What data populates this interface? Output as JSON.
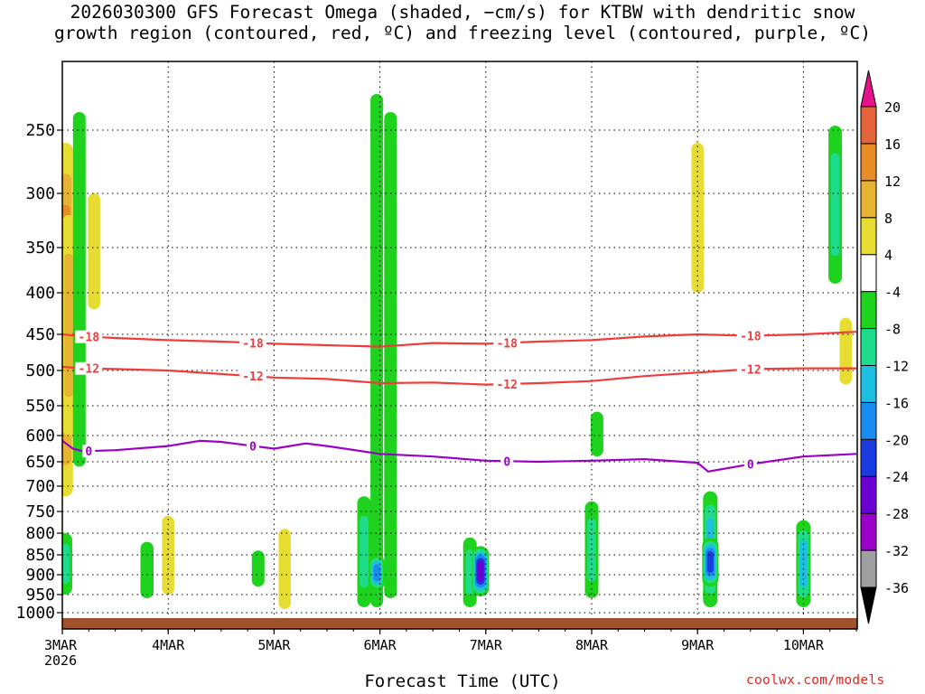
{
  "title": "2026030300 GFS Forecast Omega (shaded, −cm/s) for KTBW with dendritic snow\ngrowth region (contoured, red, ºC) and freezing level (contoured, purple, ºC)",
  "credit": "coolwx.com/models",
  "colors": {
    "omega_scale": [
      "#000000",
      "#a0a0a0",
      "#9a00c8",
      "#6a00d2",
      "#1a3be0",
      "#1a8cf0",
      "#1ebee0",
      "#1edc8c",
      "#1ed21e",
      "#ffffff",
      "#e6dc32",
      "#e6b432",
      "#e68c28",
      "#e6643c",
      "#f03c3c",
      "#e6128c"
    ],
    "dendritic": "#f03c3c",
    "freezing": "#9a00c8",
    "ground": "#a0522d"
  },
  "chart_data": {
    "type": "heatmap",
    "xlabel": "Forecast Time (UTC)",
    "ylabel": "",
    "x_ticks": [
      "3MAR\n2026",
      "4MAR",
      "5MAR",
      "6MAR",
      "7MAR",
      "8MAR",
      "9MAR",
      "10MAR"
    ],
    "x_tick_days": [
      0,
      1,
      2,
      3,
      4,
      5,
      6,
      7
    ],
    "xlim_days": [
      0,
      7.5
    ],
    "y_ticks": [
      250,
      300,
      350,
      400,
      450,
      500,
      550,
      600,
      650,
      700,
      750,
      800,
      850,
      900,
      950,
      1000
    ],
    "ylim_hpa": [
      200,
      1025
    ],
    "y_scale": "hybrid pressure",
    "grid": true,
    "colorbar_levels": [
      -36,
      -32,
      -28,
      -24,
      -20,
      -16,
      -12,
      -8,
      -4,
      4,
      8,
      12,
      16,
      20
    ],
    "contour_labels": {
      "dendritic_minus18": "-18",
      "dendritic_minus12": "-12",
      "freezing_0": "0"
    },
    "series": [
      {
        "name": "-18",
        "x": [
          0.0,
          0.2,
          0.5,
          1.0,
          1.5,
          2.0,
          2.5,
          3.0,
          3.5,
          4.0,
          4.5,
          5.0,
          5.5,
          6.0,
          6.5,
          7.0,
          7.5
        ],
        "y": [
          450,
          453,
          455,
          458,
          460,
          463,
          465,
          467,
          462,
          463,
          460,
          458,
          453,
          450,
          452,
          450,
          447
        ]
      },
      {
        "name": "-12",
        "x": [
          0.0,
          0.2,
          0.5,
          1.0,
          1.5,
          2.0,
          2.5,
          3.0,
          3.5,
          4.0,
          4.5,
          5.0,
          5.5,
          6.0,
          6.5,
          7.0,
          7.5
        ],
        "y": [
          495,
          497,
          498,
          500,
          505,
          510,
          512,
          518,
          517,
          520,
          518,
          515,
          508,
          503,
          498,
          497,
          497
        ]
      },
      {
        "name": "0",
        "x": [
          0.0,
          0.1,
          0.2,
          0.5,
          1.0,
          1.3,
          1.5,
          2.0,
          2.3,
          2.5,
          3.0,
          3.5,
          4.0,
          4.5,
          5.0,
          5.5,
          6.0,
          6.1,
          6.5,
          7.0,
          7.5
        ],
        "y": [
          610,
          625,
          630,
          628,
          620,
          610,
          612,
          625,
          615,
          620,
          635,
          640,
          648,
          650,
          648,
          645,
          652,
          670,
          655,
          640,
          635
        ]
      }
    ],
    "omega_cells": [
      {
        "t": 0.03,
        "p_top": 260,
        "p_bot": 720,
        "val": 18
      },
      {
        "t": 0.06,
        "p_top": 320,
        "p_bot": 600,
        "val": 12
      },
      {
        "t": 0.16,
        "p_top": 230,
        "p_bot": 660,
        "val": -8
      },
      {
        "t": 0.3,
        "p_top": 300,
        "p_bot": 420,
        "val": 6
      },
      {
        "t": 0.03,
        "p_top": 800,
        "p_bot": 950,
        "val": -12
      },
      {
        "t": 0.8,
        "p_top": 820,
        "p_bot": 960,
        "val": -10
      },
      {
        "t": 1.0,
        "p_top": 760,
        "p_bot": 950,
        "val": 6
      },
      {
        "t": 1.85,
        "p_top": 840,
        "p_bot": 930,
        "val": -8
      },
      {
        "t": 2.1,
        "p_top": 790,
        "p_bot": 990,
        "val": 6
      },
      {
        "t": 2.85,
        "p_top": 720,
        "p_bot": 985,
        "val": -12
      },
      {
        "t": 2.97,
        "p_top": 210,
        "p_bot": 985,
        "val": -8
      },
      {
        "t": 2.97,
        "p_top": 850,
        "p_bot": 940,
        "val": -20
      },
      {
        "t": 3.1,
        "p_top": 230,
        "p_bot": 960,
        "val": -8
      },
      {
        "t": 3.85,
        "p_top": 810,
        "p_bot": 985,
        "val": -12
      },
      {
        "t": 3.95,
        "p_top": 830,
        "p_bot": 955,
        "val": -28
      },
      {
        "t": 5.0,
        "p_top": 730,
        "p_bot": 960,
        "val": -12
      },
      {
        "t": 5.05,
        "p_top": 560,
        "p_bot": 640,
        "val": -8
      },
      {
        "t": 6.0,
        "p_top": 260,
        "p_bot": 400,
        "val": 6
      },
      {
        "t": 6.12,
        "p_top": 710,
        "p_bot": 985,
        "val": -16
      },
      {
        "t": 6.12,
        "p_top": 810,
        "p_bot": 930,
        "val": -24
      },
      {
        "t": 7.0,
        "p_top": 770,
        "p_bot": 985,
        "val": -16
      },
      {
        "t": 7.3,
        "p_top": 245,
        "p_bot": 390,
        "val": -12
      },
      {
        "t": 7.4,
        "p_top": 430,
        "p_bot": 520,
        "val": 6
      }
    ]
  }
}
